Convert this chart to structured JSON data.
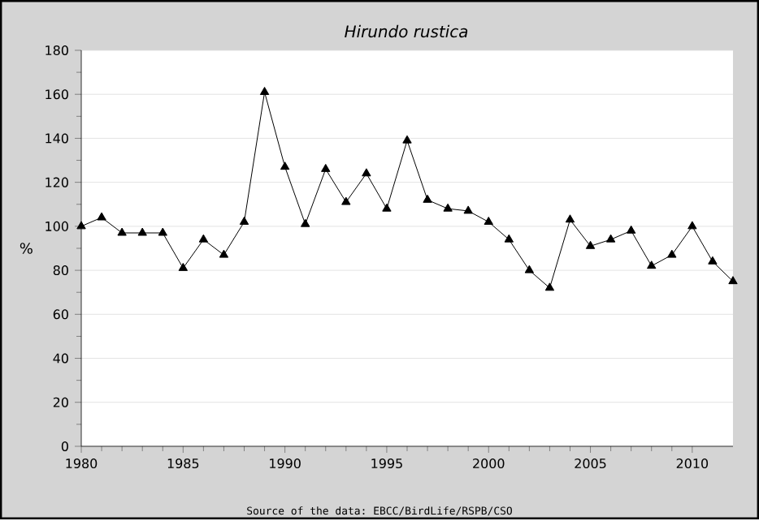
{
  "chart_data": {
    "type": "line",
    "title": "*Hirundo rustica*",
    "ylabel": "%",
    "x": [
      1980,
      1981,
      1982,
      1983,
      1984,
      1985,
      1986,
      1987,
      1988,
      1989,
      1990,
      1991,
      1992,
      1993,
      1994,
      1995,
      1996,
      1997,
      1998,
      1999,
      2000,
      2001,
      2002,
      2003,
      2004,
      2005,
      2006,
      2007,
      2008,
      2009,
      2010,
      2011,
      2012
    ],
    "series": [
      {
        "color": "#000000",
        "values": [
          100,
          104,
          97,
          97,
          97,
          81,
          94,
          87,
          102,
          161,
          127,
          101,
          126,
          111,
          124,
          108,
          139,
          112,
          108,
          107,
          102,
          94,
          80,
          72,
          103,
          91,
          94,
          98,
          82,
          87,
          100,
          84,
          75
        ]
      }
    ],
    "xlim": [
      1980,
      2012
    ],
    "xticks": [
      1980,
      1985,
      1990,
      1995,
      2000,
      2005,
      2010
    ],
    "ylim": [
      0,
      180
    ],
    "yticks": [
      0,
      20,
      40,
      60,
      80,
      100,
      120,
      140,
      160,
      180
    ],
    "grid": "y",
    "marker": "triangle",
    "line_style": "solid",
    "annotations": [
      "Source of the data: EBCC/BirdLife/RSPB/CSO"
    ]
  }
}
